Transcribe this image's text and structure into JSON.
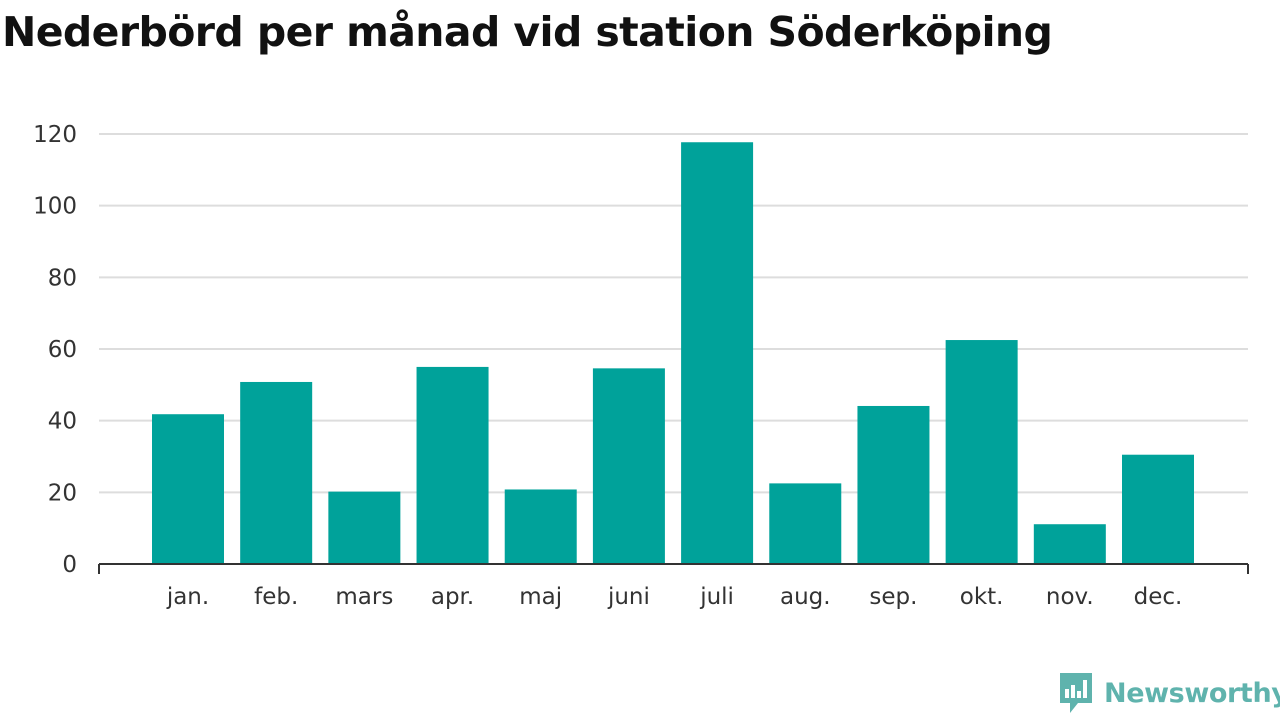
{
  "chart_data": {
    "type": "bar",
    "title": "Nederbörd per månad vid station Söderköping",
    "xlabel": "",
    "ylabel": "",
    "categories": [
      "jan.",
      "feb.",
      "mars",
      "apr.",
      "maj",
      "juni",
      "juli",
      "aug.",
      "sep.",
      "okt.",
      "nov.",
      "dec."
    ],
    "values": [
      41.8,
      50.8,
      20.2,
      55.0,
      20.8,
      54.6,
      117.7,
      22.5,
      44.1,
      62.5,
      11.1,
      30.5
    ],
    "ylim": [
      0,
      120
    ],
    "yticks": [
      "0",
      "20",
      "40",
      "60",
      "80",
      "100",
      "120"
    ],
    "grid": true,
    "legend": "none",
    "bar_color": "#00a29a",
    "grid_color": "#dddddd",
    "axis_color": "#333333"
  },
  "branding": {
    "name": "Newsworthy",
    "color": "#5fb3ad",
    "icon": "newsworthy-logo-icon"
  }
}
